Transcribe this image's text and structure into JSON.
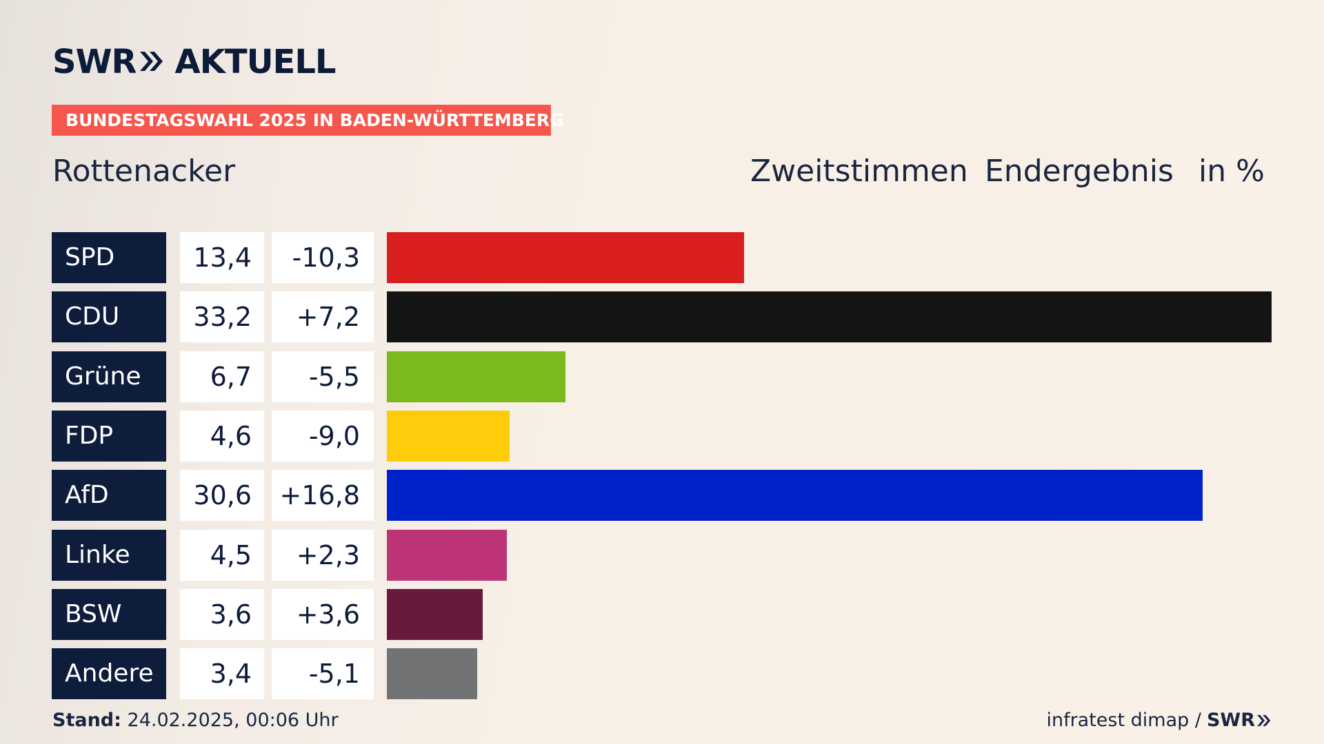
{
  "brand": {
    "name": "SWR",
    "product": "AKTUELL"
  },
  "tag": "BUNDESTAGSWAHL 2025 IN BADEN-WÜRTTEMBERG",
  "location": "Rottenacker",
  "headers": {
    "vote_type": "Zweitstimmen",
    "status": "Endergebnis",
    "unit": "in %"
  },
  "chart_data": {
    "type": "bar",
    "orientation": "horizontal",
    "categories": [
      "SPD",
      "CDU",
      "Grüne",
      "FDP",
      "AfD",
      "Linke",
      "BSW",
      "Andere"
    ],
    "values": [
      13.4,
      33.2,
      6.7,
      4.6,
      30.6,
      4.5,
      3.6,
      3.4
    ],
    "value_labels": [
      "13,4",
      "33,2",
      "6,7",
      "4,6",
      "30,6",
      "4,5",
      "3,6",
      "3,4"
    ],
    "changes": [
      -10.3,
      7.2,
      -5.5,
      -9.0,
      16.8,
      2.3,
      3.6,
      -5.1
    ],
    "change_labels": [
      "-10,3",
      "+7,2",
      "-5,5",
      "-9,0",
      "+16,8",
      "+2,3",
      "+3,6",
      "-5,1"
    ],
    "colors": [
      "#d81e1f",
      "#141414",
      "#7aba1e",
      "#fecc0a",
      "#0022cb",
      "#bc3475",
      "#681a3e",
      "#727374"
    ],
    "xlim": [
      0,
      33.2
    ]
  },
  "footer": {
    "stand_label": "Stand:",
    "stand_value": "24.02.2025, 00:06 Uhr",
    "source": "infratest dimap /",
    "source_brand": "SWR"
  }
}
